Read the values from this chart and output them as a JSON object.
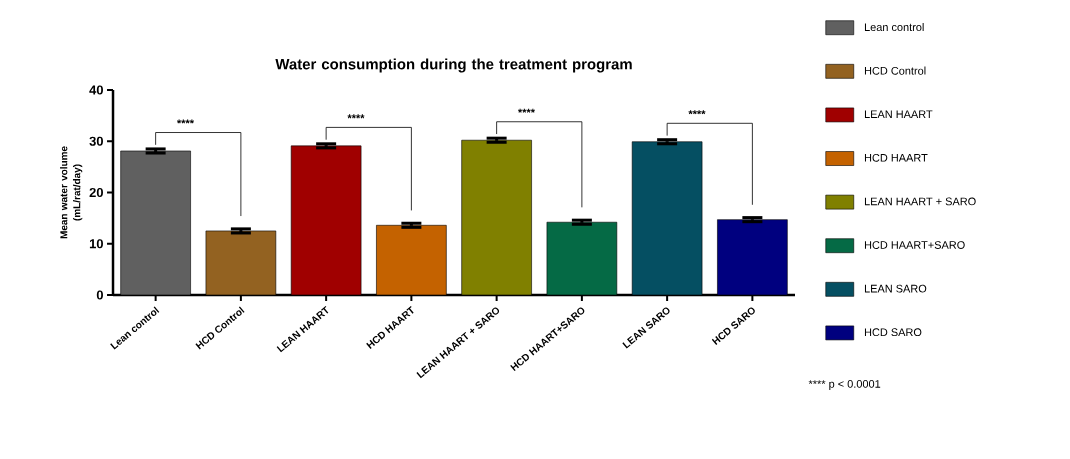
{
  "chart_data": {
    "type": "bar",
    "title": "Water consumption during the treatment program",
    "ylabel": "Mean water volume (mL/rat/day)",
    "categories": [
      "Lean control",
      "HCD Control",
      "LEAN HAART",
      "HCD HAART",
      "LEAN HAART + SARO",
      "HCD HAART+SARO",
      "LEAN SARO",
      "HCD SARO"
    ],
    "series": [
      {
        "name": "Lean control",
        "color": "#606060",
        "values": [
          28.1,
          null,
          null,
          null,
          null,
          null,
          null,
          null
        ],
        "errors": [
          0.4,
          null,
          null,
          null,
          null,
          null,
          null,
          null
        ]
      },
      {
        "name": "HCD Control",
        "color": "#936221",
        "values": [
          null,
          12.5,
          null,
          null,
          null,
          null,
          null,
          null
        ],
        "errors": [
          null,
          0.4,
          null,
          null,
          null,
          null,
          null,
          null
        ]
      },
      {
        "name": "LEAN HAART",
        "color": "#a00000",
        "values": [
          null,
          null,
          29.1,
          null,
          null,
          null,
          null,
          null
        ],
        "errors": [
          null,
          null,
          0.4,
          null,
          null,
          null,
          null,
          null
        ]
      },
      {
        "name": "HCD HAART",
        "color": "#c46200",
        "values": [
          null,
          null,
          null,
          13.6,
          null,
          null,
          null,
          null
        ],
        "errors": [
          null,
          null,
          null,
          0.4,
          null,
          null,
          null,
          null
        ]
      },
      {
        "name": "LEAN HAART + SARO",
        "color": "#808000",
        "values": [
          null,
          null,
          null,
          null,
          30.2,
          null,
          null,
          null
        ],
        "errors": [
          null,
          null,
          null,
          null,
          0.4,
          null,
          null,
          null
        ]
      },
      {
        "name": "HCD HAART+SARO",
        "color": "#056a45",
        "values": [
          null,
          null,
          null,
          null,
          null,
          14.2,
          null,
          null
        ],
        "errors": [
          null,
          null,
          null,
          null,
          null,
          0.4,
          null,
          null
        ]
      },
      {
        "name": "LEAN SARO",
        "color": "#054f62",
        "values": [
          null,
          null,
          null,
          null,
          null,
          null,
          29.9,
          null
        ],
        "errors": [
          null,
          null,
          null,
          null,
          null,
          null,
          0.4,
          null
        ]
      },
      {
        "name": "HCD SARO",
        "color": "#00007f",
        "values": [
          null,
          null,
          null,
          null,
          null,
          null,
          null,
          14.7
        ],
        "errors": [
          null,
          null,
          null,
          null,
          null,
          null,
          null,
          0.4
        ]
      }
    ],
    "ylim": [
      0,
      40
    ],
    "yticks": [
      0,
      10,
      20,
      30,
      40
    ],
    "grid": false,
    "legend": "right",
    "annotations": [
      "****",
      "****",
      "****",
      "****",
      "**** p < 0.0001"
    ]
  }
}
